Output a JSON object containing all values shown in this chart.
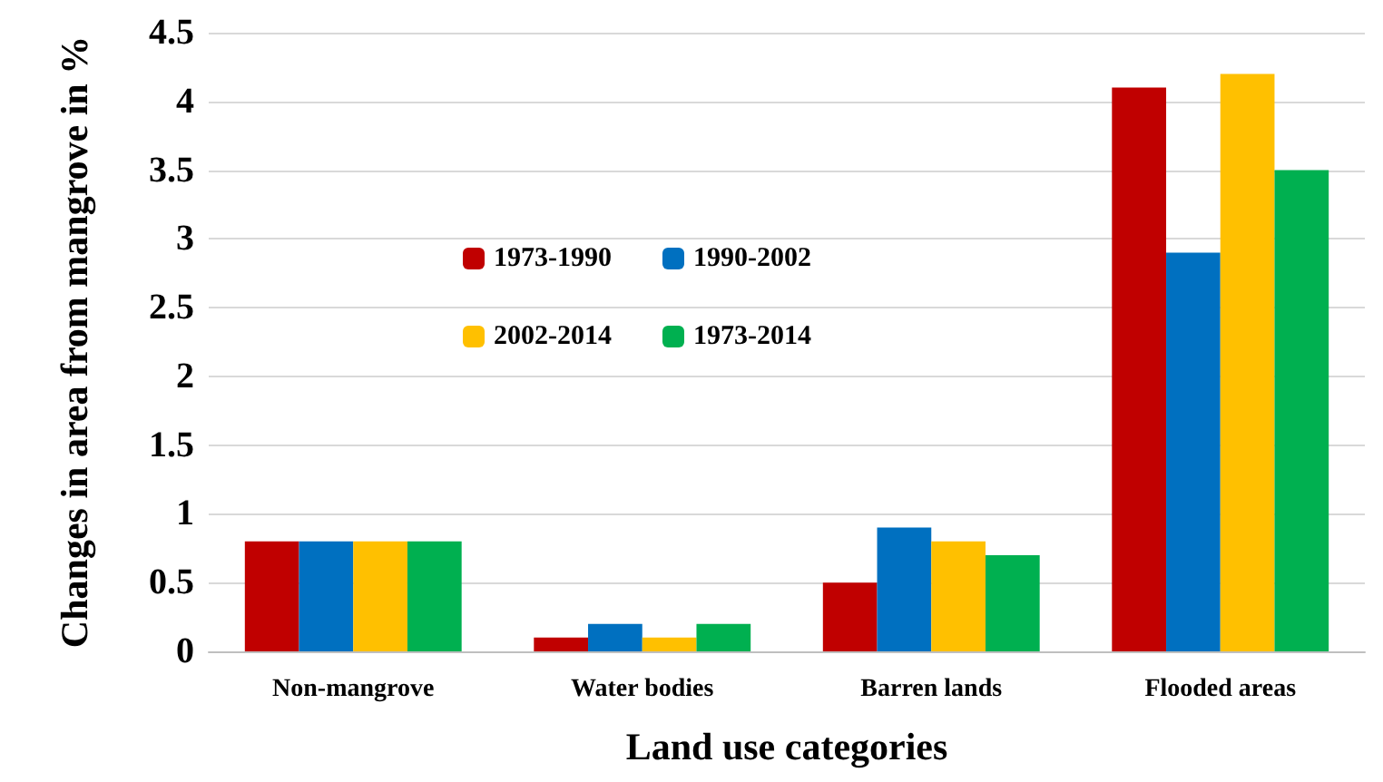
{
  "chart_data": {
    "type": "bar",
    "xlabel": "Land use categories",
    "ylabel": "Changes in area from mangrove in %",
    "categories": [
      "Non-mangrove",
      "Water bodies",
      "Barren lands",
      "Flooded areas"
    ],
    "series": [
      {
        "name": "1973-1990",
        "color": "#c00000",
        "values": [
          0.8,
          0.1,
          0.5,
          4.1
        ]
      },
      {
        "name": "1990-2002",
        "color": "#0070c0",
        "values": [
          0.8,
          0.2,
          0.9,
          2.9
        ]
      },
      {
        "name": "2002-2014",
        "color": "#ffc000",
        "values": [
          0.8,
          0.1,
          0.8,
          4.2
        ]
      },
      {
        "name": "1973-2014",
        "color": "#00b050",
        "values": [
          0.8,
          0.2,
          0.7,
          3.5
        ]
      }
    ],
    "ylim": [
      0,
      4.5
    ],
    "yticks": [
      0,
      0.5,
      1,
      1.5,
      2,
      2.5,
      3,
      3.5,
      4,
      4.5
    ],
    "grid": "y",
    "legend": "center"
  }
}
